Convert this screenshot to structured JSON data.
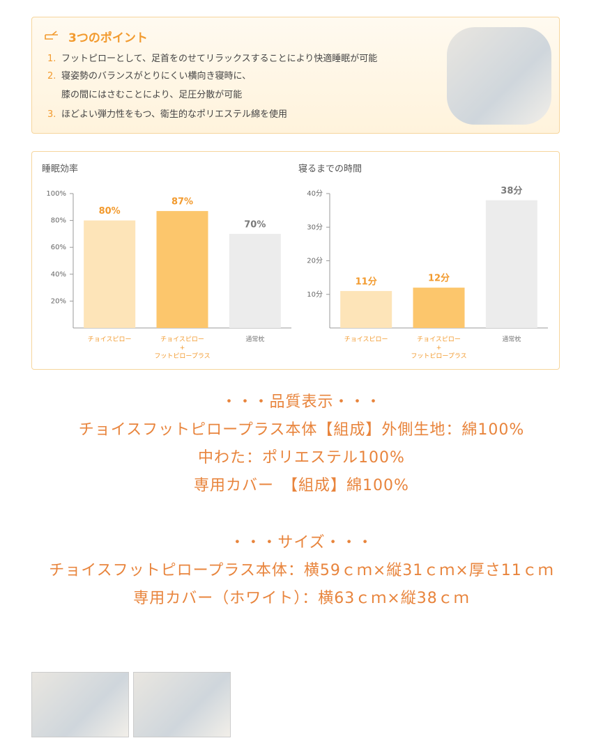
{
  "points": {
    "title": "3つのポイント",
    "items": [
      {
        "number": "1.",
        "lines": [
          "フットピローとして、足首をのせてリラックスすることにより快適睡眠が可能"
        ]
      },
      {
        "number": "2.",
        "lines": [
          "寝姿勢のバランスがとりにくい横向き寝時に、",
          "膝の間にはさむことにより、足圧分散が可能"
        ]
      },
      {
        "number": "3.",
        "lines": [
          "ほどよい弾力性をもつ、衛生的なポリエステル綿を使用"
        ]
      }
    ]
  },
  "chart_data": [
    {
      "type": "bar",
      "title": "睡眠効率",
      "categories": [
        "チョイスピロー",
        "チョイスピロー\n+\nフットピロープラス",
        "通常枕"
      ],
      "values": [
        80,
        87,
        70
      ],
      "value_labels": [
        "80%",
        "87%",
        "70%"
      ],
      "colors": [
        "#fde4b8",
        "#fcc66c",
        "#ececec"
      ],
      "label_colors": [
        "#f29a2e",
        "#f29a2e",
        "#7a7a7a"
      ],
      "ylim": [
        0,
        100
      ],
      "yticks": [
        {
          "value": 20,
          "label": "20%"
        },
        {
          "value": 40,
          "label": "40%"
        },
        {
          "value": 60,
          "label": "60%"
        },
        {
          "value": 80,
          "label": "80%"
        },
        {
          "value": 100,
          "label": "100%"
        }
      ]
    },
    {
      "type": "bar",
      "title": "寝るまでの時間",
      "categories": [
        "チョイスピロー",
        "チョイスピロー\n+\nフットピロープラス",
        "通常枕"
      ],
      "values": [
        11,
        12,
        38
      ],
      "value_labels": [
        "11分",
        "12分",
        "38分"
      ],
      "colors": [
        "#fde4b8",
        "#fcc66c",
        "#ececec"
      ],
      "label_colors": [
        "#f29a2e",
        "#f29a2e",
        "#7a7a7a"
      ],
      "ylim": [
        0,
        40
      ],
      "yticks": [
        {
          "value": 10,
          "label": "10分"
        },
        {
          "value": 20,
          "label": "20分"
        },
        {
          "value": 30,
          "label": "30分"
        },
        {
          "value": 40,
          "label": "40分"
        }
      ]
    }
  ],
  "quality": {
    "heading": "・・・品質表示・・・",
    "lines": [
      "チョイスフットピロープラス本体【組成】外側生地：綿100%",
      "中わた：ポリエステル100%",
      "専用カバー　【組成】綿100%"
    ]
  },
  "size": {
    "heading": "・・・サイズ・・・",
    "lines": [
      "チョイスフットピロープラス本体：横59ｃｍ×縦31ｃｍ×厚さ11ｃｍ",
      "専用カバー（ホワイト）：横63ｃｍ×縦38ｃｍ"
    ]
  }
}
